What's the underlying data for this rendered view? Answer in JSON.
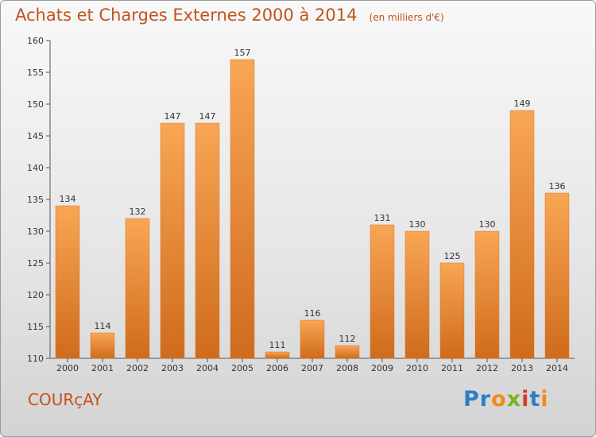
{
  "title": "Achats et Charges Externes 2000 à 2014",
  "subtitle": "(en milliers d'€)",
  "commune": "COURçAY",
  "brand": {
    "letters": [
      "P",
      "r",
      "o",
      "x",
      "i",
      "t",
      "i"
    ],
    "colors": [
      "#2d7fc4",
      "#2d7fc4",
      "#f28a1a",
      "#7ab51d",
      "#d93a2b",
      "#2d7fc4",
      "#f28a1a"
    ]
  },
  "colors": {
    "title": "#c0541e",
    "bar_top": "#f8a655",
    "bar_bottom": "#cf6b1c"
  },
  "chart_data": {
    "type": "bar",
    "categories": [
      "2000",
      "2001",
      "2002",
      "2003",
      "2004",
      "2005",
      "2006",
      "2007",
      "2008",
      "2009",
      "2010",
      "2011",
      "2012",
      "2013",
      "2014"
    ],
    "values": [
      134,
      114,
      132,
      147,
      147,
      157,
      111,
      116,
      112,
      131,
      130,
      125,
      130,
      149,
      136
    ],
    "ylim": [
      110,
      160
    ],
    "yticks": [
      110,
      115,
      120,
      125,
      130,
      135,
      140,
      145,
      150,
      155,
      160
    ],
    "grid": false,
    "data_labels": true
  }
}
